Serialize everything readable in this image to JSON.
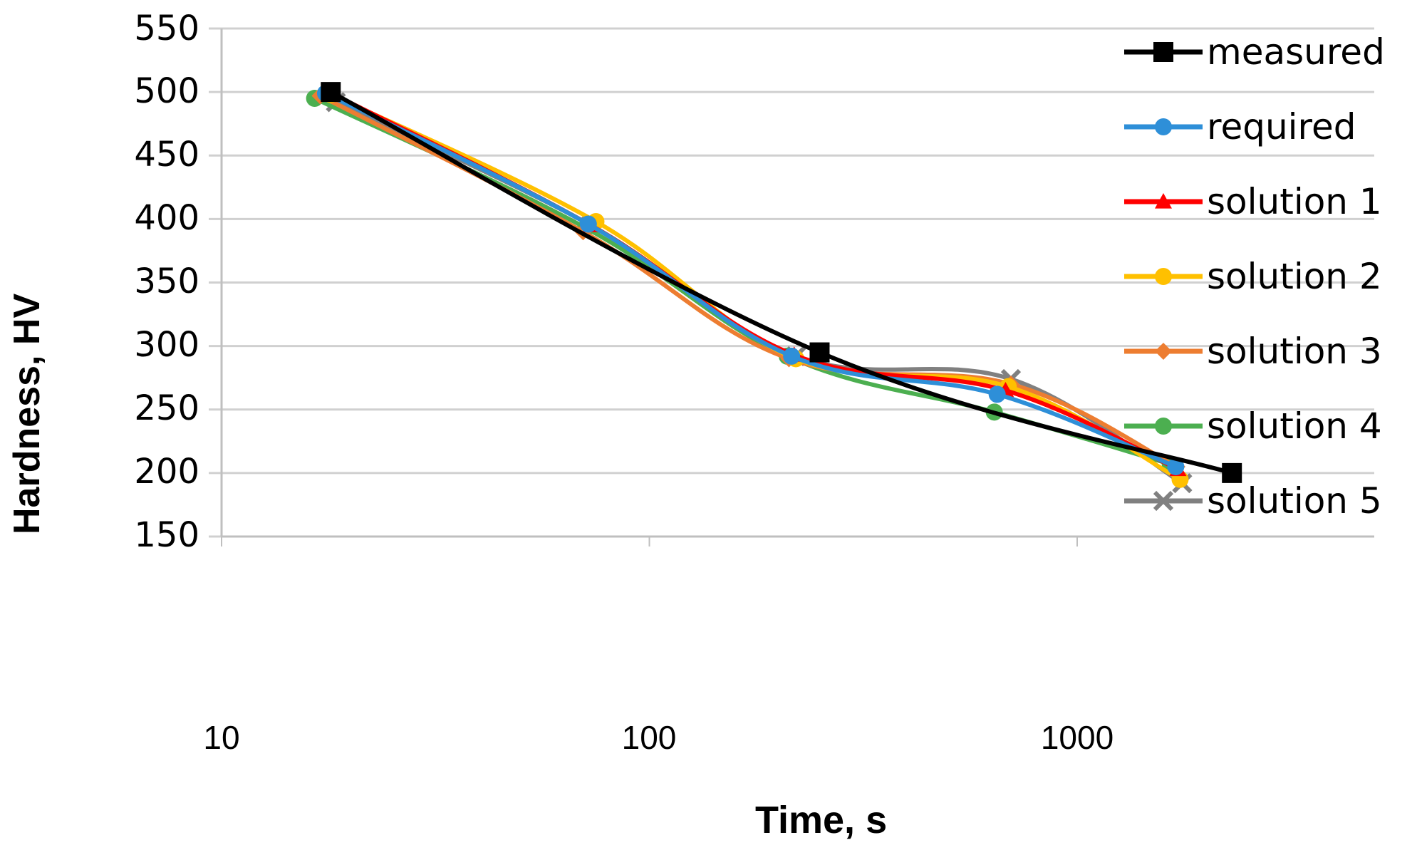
{
  "chart_data": {
    "type": "line",
    "title": "",
    "xlabel": "Time, s",
    "ylabel": "Hardness, HV",
    "xscale": "log",
    "xlim": [
      10,
      5000
    ],
    "ylim": [
      150,
      550
    ],
    "x_ticks": [
      "10",
      "100",
      "1000"
    ],
    "y_ticks": [
      "550",
      "500",
      "450",
      "400",
      "350",
      "300",
      "250",
      "200",
      "150"
    ],
    "grid": {
      "horizontal": true,
      "vertical": false
    },
    "legend_position": "right",
    "series": [
      {
        "name": "measured",
        "color": "#000000",
        "marker": "square",
        "x": [
          18,
          250,
          2300
        ],
        "y": [
          500,
          295,
          200
        ]
      },
      {
        "name": "required",
        "color": "#2E8FD8",
        "marker": "circle",
        "x": [
          17.5,
          72,
          215,
          650,
          1700
        ],
        "y": [
          499,
          396,
          292,
          262,
          205
        ]
      },
      {
        "name": "solution 1",
        "color": "#FF0000",
        "marker": "triangle",
        "x": [
          17.8,
          73,
          218,
          680,
          1720
        ],
        "y": [
          500,
          395,
          293,
          265,
          203
        ]
      },
      {
        "name": "solution 2",
        "color": "#FFC000",
        "marker": "circle",
        "x": [
          18,
          75,
          220,
          690,
          1740
        ],
        "y": [
          498,
          398,
          290,
          268,
          195
        ]
      },
      {
        "name": "solution 3",
        "color": "#ED7D31",
        "marker": "diamond",
        "x": [
          17,
          70,
          212,
          700,
          1710
        ],
        "y": [
          497,
          390,
          290,
          270,
          205
        ]
      },
      {
        "name": "solution 4",
        "color": "#4CAF50",
        "marker": "circle",
        "x": [
          16.5,
          71,
          210,
          640,
          1650
        ],
        "y": [
          495,
          393,
          292,
          248,
          207
        ]
      },
      {
        "name": "solution 5",
        "color": "#808080",
        "marker": "x",
        "x": [
          18.5,
          73,
          220,
          700,
          1760
        ],
        "y": [
          492,
          395,
          292,
          274,
          192
        ]
      }
    ]
  },
  "axes": {
    "xlabel": "Time, s",
    "ylabel": "Hardness, HV",
    "y_ticks": [
      "550",
      "500",
      "450",
      "400",
      "350",
      "300",
      "250",
      "200",
      "150"
    ],
    "x_ticks": [
      "10",
      "100",
      "1000"
    ]
  },
  "legend": {
    "items": [
      {
        "label": "measured"
      },
      {
        "label": "required"
      },
      {
        "label": "solution 1"
      },
      {
        "label": "solution 2"
      },
      {
        "label": "solution 3"
      },
      {
        "label": "solution 4"
      },
      {
        "label": "solution 5"
      }
    ]
  }
}
